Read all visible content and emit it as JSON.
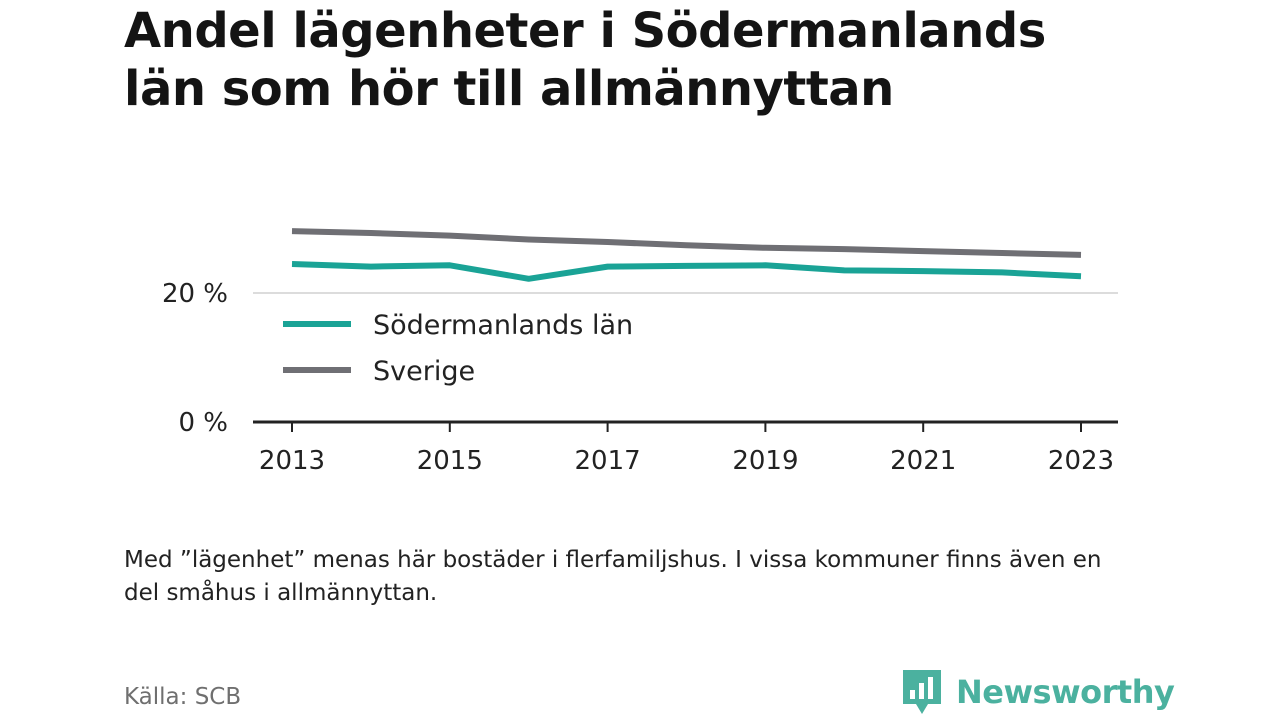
{
  "title_lines": [
    "Andel lägenheter i Södermanlands",
    "län som hör till allmännyttan"
  ],
  "note_text": "Med ”lägenhet” menas här bostäder i flerfamiljshus. I vissa kommuner finns även en del småhus i allmännyttan.",
  "source_text": "Källa: SCB",
  "brand_name": "Newsworthy",
  "colors": {
    "brand": "#4bb19f",
    "sodermanland": "#1aa396",
    "sverige": "#6f6f74",
    "axis": "#222222",
    "grid": "#dcdcdc"
  },
  "chart_data": {
    "type": "line",
    "x": [
      2013,
      2014,
      2015,
      2016,
      2017,
      2018,
      2019,
      2020,
      2021,
      2022,
      2023
    ],
    "x_tick_labels": [
      "2013",
      "2015",
      "2017",
      "2019",
      "2021",
      "2023"
    ],
    "x_tick_values": [
      2013,
      2015,
      2017,
      2019,
      2021,
      2023
    ],
    "y_tick_labels": [
      "0 %",
      "20 %"
    ],
    "y_tick_values": [
      0,
      20
    ],
    "ylim": [
      0,
      30
    ],
    "grid": true,
    "legend_placement": "inside-left",
    "series": [
      {
        "name": "Södermanlands län",
        "color": "#1aa396",
        "values": [
          24.5,
          24.1,
          24.3,
          22.2,
          24.1,
          24.2,
          24.3,
          23.5,
          23.4,
          23.2,
          22.6
        ]
      },
      {
        "name": "Sverige",
        "color": "#6f6f74",
        "values": [
          29.6,
          29.3,
          28.9,
          28.3,
          27.9,
          27.4,
          27.0,
          26.8,
          26.5,
          26.2,
          25.9
        ]
      }
    ]
  }
}
